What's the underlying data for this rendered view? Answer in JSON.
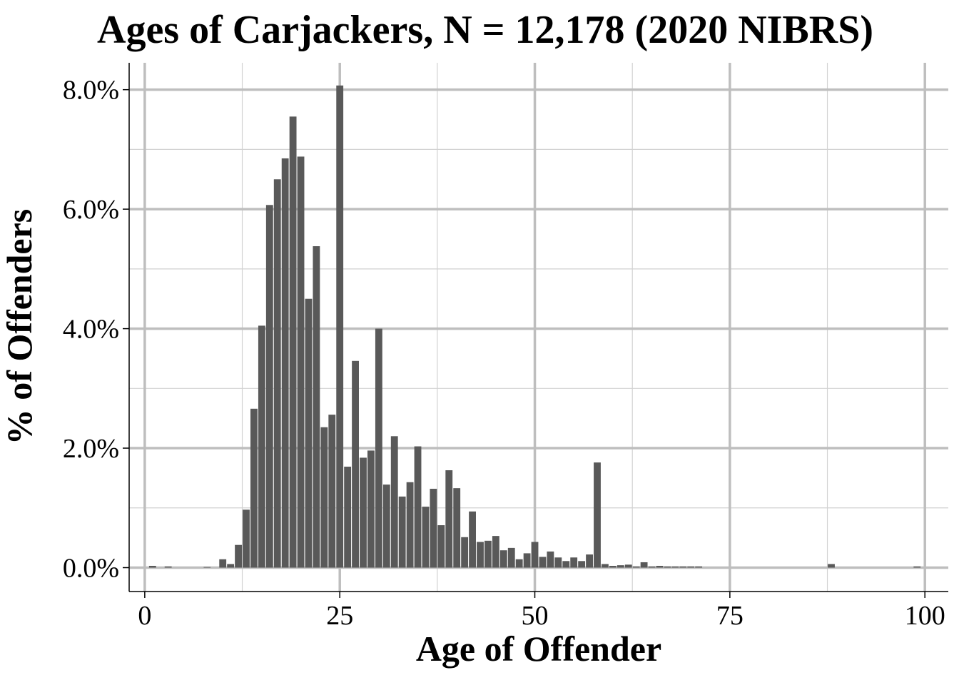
{
  "chart_data": {
    "type": "bar",
    "title": "Ages of Carjackers, N = 12,178 (2020 NIBRS)",
    "xlabel": "Age of Offender",
    "ylabel": "% of Offenders",
    "xlim": [
      -2,
      103
    ],
    "ylim": [
      -0.4,
      8.45
    ],
    "x_ticks": [
      0,
      25,
      50,
      75,
      100
    ],
    "x_tick_labels": [
      "0",
      "25",
      "50",
      "75",
      "100"
    ],
    "y_ticks": [
      0,
      2,
      4,
      6,
      8
    ],
    "y_tick_labels": [
      "0.0%",
      "2.0%",
      "4.0%",
      "6.0%",
      "8.0%"
    ],
    "grid": true,
    "bar_color": "#595959",
    "x": [
      1,
      3,
      8,
      10,
      11,
      12,
      13,
      14,
      15,
      16,
      17,
      18,
      19,
      20,
      21,
      22,
      23,
      24,
      25,
      26,
      27,
      28,
      29,
      30,
      31,
      32,
      33,
      34,
      35,
      36,
      37,
      38,
      39,
      40,
      41,
      42,
      43,
      44,
      45,
      46,
      47,
      48,
      49,
      50,
      51,
      52,
      53,
      54,
      55,
      56,
      57,
      58,
      59,
      60,
      61,
      62,
      63,
      64,
      65,
      66,
      67,
      68,
      69,
      70,
      71,
      88,
      99
    ],
    "values": [
      0.03,
      0.02,
      0.01,
      0.14,
      0.06,
      0.38,
      0.97,
      2.66,
      4.05,
      6.07,
      6.5,
      6.85,
      7.55,
      6.88,
      4.5,
      5.38,
      2.35,
      2.56,
      8.07,
      1.69,
      3.46,
      1.84,
      1.96,
      4.0,
      1.39,
      2.2,
      1.19,
      1.43,
      2.03,
      1.02,
      1.32,
      0.71,
      1.63,
      1.33,
      0.51,
      0.94,
      0.43,
      0.45,
      0.53,
      0.29,
      0.33,
      0.14,
      0.24,
      0.43,
      0.18,
      0.27,
      0.17,
      0.11,
      0.17,
      0.11,
      0.22,
      1.76,
      0.06,
      0.03,
      0.04,
      0.05,
      0.02,
      0.09,
      0.02,
      0.03,
      0.02,
      0.02,
      0.02,
      0.02,
      0.02,
      0.06,
      0.02
    ]
  }
}
